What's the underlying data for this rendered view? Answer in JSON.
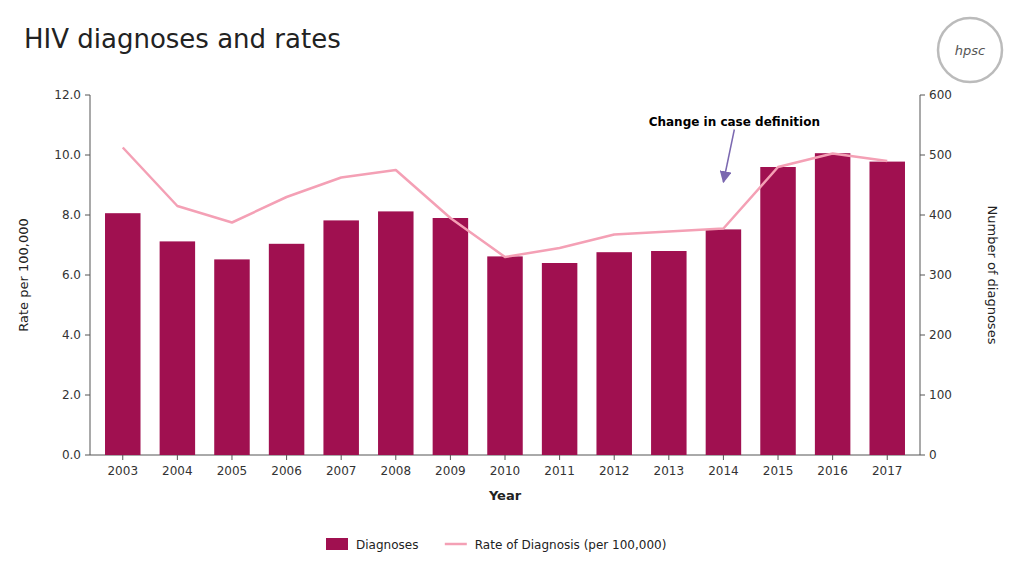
{
  "chart_data": {
    "type": "bar",
    "title": "HIV diagnoses and rates",
    "xlabel": "Year",
    "ylabel": "Rate per 100,000",
    "y2label": "Number of diagnoses",
    "x": [
      2003,
      2004,
      2005,
      2006,
      2007,
      2008,
      2009,
      2010,
      2011,
      2012,
      2013,
      2014,
      2015,
      2016,
      2017
    ],
    "xlim": [
      2002.4,
      2017.6
    ],
    "xticks": [
      2003,
      2004,
      2005,
      2006,
      2007,
      2008,
      2009,
      2010,
      2011,
      2012,
      2013,
      2014,
      2015,
      2016,
      2017
    ],
    "ylim": [
      0,
      12.0
    ],
    "yticks": [
      {
        "value": 0,
        "label": "0.0"
      },
      {
        "value": 2.0,
        "label": "2.0"
      },
      {
        "value": 4.0,
        "label": "4.0"
      },
      {
        "value": 6.0,
        "label": "6.0"
      },
      {
        "value": 8.0,
        "label": "8.0"
      },
      {
        "value": 10.0,
        "label": "10.0"
      },
      {
        "value": 12.0,
        "label": "12.0"
      }
    ],
    "y2lim": [
      0,
      600
    ],
    "y2ticks": [
      0,
      100,
      200,
      300,
      400,
      500,
      600
    ],
    "series": [
      {
        "name": "Diagnoses",
        "type": "bar",
        "axis": "y2",
        "color": "#A01050",
        "values": [
          403,
          356,
          326,
          352,
          391,
          406,
          395,
          331,
          320,
          338,
          340,
          376,
          480,
          503,
          489
        ]
      },
      {
        "name": "Rate of Diagnosis (per 100,000)",
        "type": "line",
        "color": "#F4A0B5",
        "values": [
          10.25,
          8.3,
          7.75,
          8.6,
          9.25,
          9.5,
          7.9,
          6.6,
          6.9,
          7.35,
          7.45,
          7.55,
          9.6,
          10.05,
          9.8
        ]
      }
    ],
    "grid": false,
    "legend": "bottom",
    "annotations": [
      {
        "text": "Change in case definition",
        "x": 2014,
        "y": 9.1,
        "text_x": 2014.2,
        "text_y": 10.85,
        "color": "#7B68B0"
      },
      {
        "text": "hpsc"
      }
    ]
  }
}
